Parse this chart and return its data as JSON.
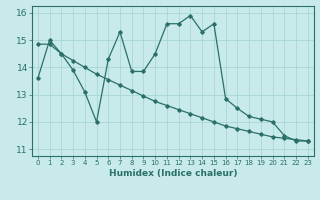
{
  "xlabel": "Humidex (Indice chaleur)",
  "bg_color": "#c8eaea",
  "grid_color": "#a8d8d4",
  "line_color": "#2a7068",
  "x_jagged": [
    0,
    1,
    2,
    3,
    4,
    5,
    6,
    7,
    8,
    9,
    10,
    11,
    12,
    13,
    14,
    15,
    16,
    17,
    18,
    19,
    20,
    21,
    22,
    23
  ],
  "y_jagged": [
    13.6,
    15.0,
    14.5,
    13.9,
    13.1,
    12.0,
    14.3,
    15.3,
    13.85,
    13.85,
    14.5,
    15.6,
    15.6,
    15.9,
    15.3,
    15.6,
    12.85,
    12.5,
    12.2,
    12.1,
    12.0,
    11.5,
    11.3,
    11.3
  ],
  "x_smooth": [
    0,
    1,
    2,
    3,
    4,
    5,
    6,
    7,
    8,
    9,
    10,
    11,
    12,
    13,
    14,
    15,
    16,
    17,
    18,
    19,
    20,
    21,
    22,
    23
  ],
  "y_smooth": [
    14.85,
    14.85,
    14.5,
    14.25,
    14.0,
    13.75,
    13.55,
    13.35,
    13.15,
    12.95,
    12.75,
    12.6,
    12.45,
    12.3,
    12.15,
    12.0,
    11.85,
    11.75,
    11.65,
    11.55,
    11.45,
    11.4,
    11.35,
    11.3
  ],
  "ylim": [
    10.75,
    16.25
  ],
  "xlim": [
    -0.5,
    23.5
  ],
  "yticks": [
    11,
    12,
    13,
    14,
    15,
    16
  ],
  "xticks": [
    0,
    1,
    2,
    3,
    4,
    5,
    6,
    7,
    8,
    9,
    10,
    11,
    12,
    13,
    14,
    15,
    16,
    17,
    18,
    19,
    20,
    21,
    22,
    23
  ],
  "xlabel_fontsize": 6.5,
  "ytick_fontsize": 6.5,
  "xtick_fontsize": 5.0,
  "spine_color": "#2a7068",
  "tick_color": "#2a7068"
}
